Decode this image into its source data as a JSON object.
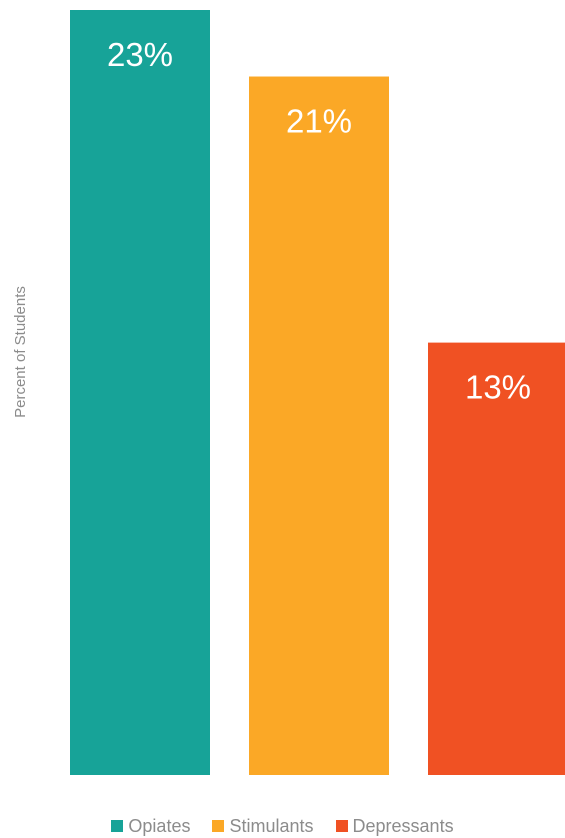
{
  "chart_data": {
    "type": "bar",
    "title": "",
    "xlabel": "",
    "ylabel": "Percent of Students",
    "ylim": [
      0,
      23
    ],
    "grid": false,
    "legend_position": "bottom",
    "categories": [
      "Opiates",
      "Stimulants",
      "Depressants"
    ],
    "values": [
      23,
      21,
      13
    ],
    "value_labels": [
      "23%",
      "21%",
      "13%"
    ],
    "colors": [
      "#17a398",
      "#fba826",
      "#f05123"
    ]
  }
}
